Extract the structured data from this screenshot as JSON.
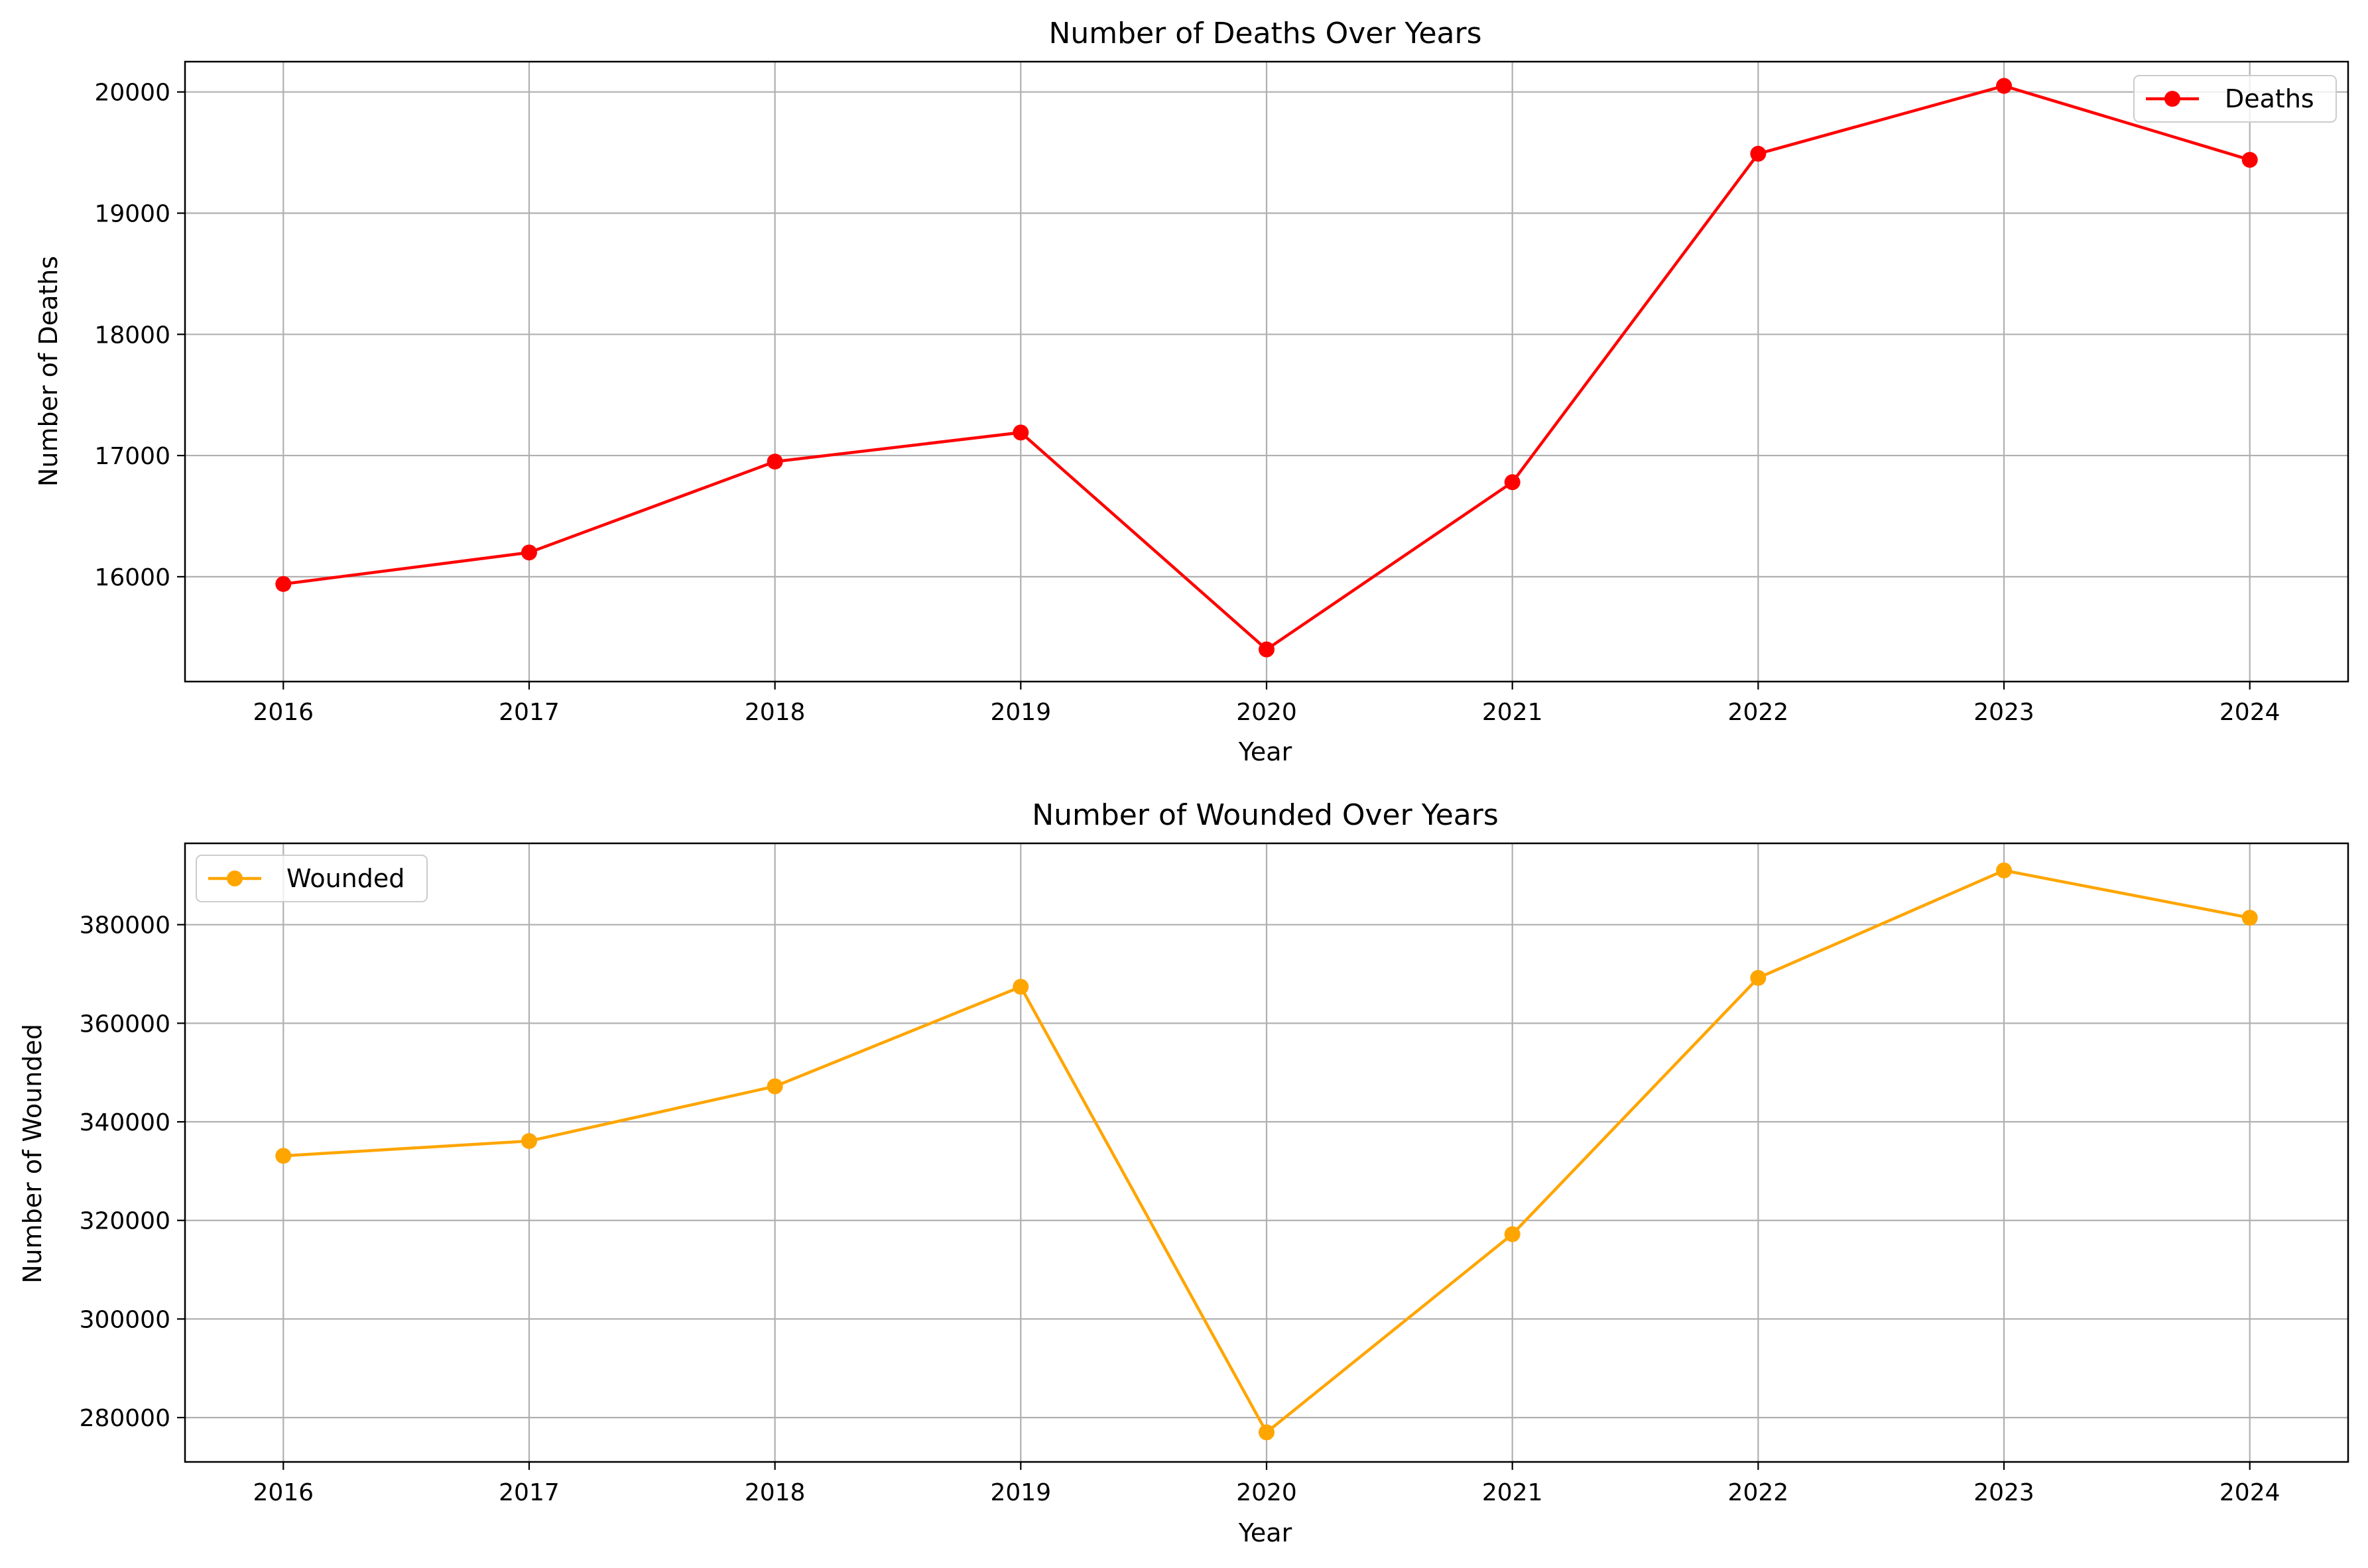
{
  "chart_data": [
    {
      "type": "line",
      "title": "Number of Deaths Over Years",
      "xlabel": "Year",
      "ylabel": "Number of Deaths",
      "x": [
        2016,
        2017,
        2018,
        2019,
        2020,
        2021,
        2022,
        2023,
        2024
      ],
      "series": [
        {
          "name": "Deaths",
          "values": [
            15940,
            16200,
            16950,
            17190,
            15400,
            16780,
            19490,
            20050,
            19440
          ],
          "color": "#ff0000"
        }
      ],
      "ylim": [
        15135,
        20250
      ],
      "yticks": [
        16000,
        17000,
        18000,
        19000,
        20000
      ],
      "grid": true,
      "legend": "upper right"
    },
    {
      "type": "line",
      "title": "Number of Wounded Over Years",
      "xlabel": "Year",
      "ylabel": "Number of Wounded",
      "x": [
        2016,
        2017,
        2018,
        2019,
        2020,
        2021,
        2022,
        2023,
        2024
      ],
      "series": [
        {
          "name": "Wounded",
          "values": [
            333100,
            336100,
            347200,
            367400,
            277000,
            317200,
            369200,
            391000,
            381400
          ],
          "color": "#ffa500"
        }
      ],
      "ylim": [
        271000,
        396500
      ],
      "yticks": [
        280000,
        300000,
        320000,
        340000,
        360000,
        380000
      ],
      "grid": true,
      "legend": "upper left"
    }
  ]
}
